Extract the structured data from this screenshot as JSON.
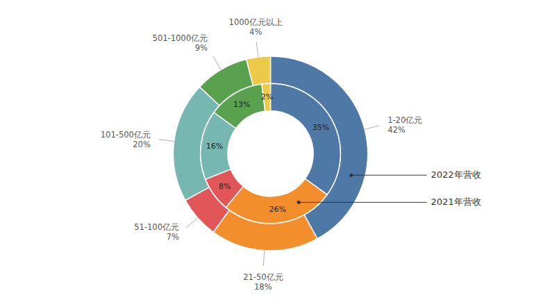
{
  "chart_data": {
    "type": "pie",
    "categories": [
      "1-20亿元",
      "21-50亿元",
      "51-100亿元",
      "101-500亿元",
      "501-1000亿元",
      "1000亿元以上"
    ],
    "series": [
      {
        "name": "2022年营收",
        "values": [
          42,
          18,
          7,
          20,
          9,
          4
        ],
        "value_labels": [
          "42%",
          "18%",
          "7%",
          "20%",
          "9%",
          "4%"
        ]
      },
      {
        "name": "2021年营收",
        "values": [
          35,
          26,
          8,
          16,
          13,
          2
        ],
        "value_labels": [
          "35%",
          "26%",
          "8%",
          "16%",
          "13%",
          "2%"
        ]
      }
    ],
    "data_labels": true
  }
}
